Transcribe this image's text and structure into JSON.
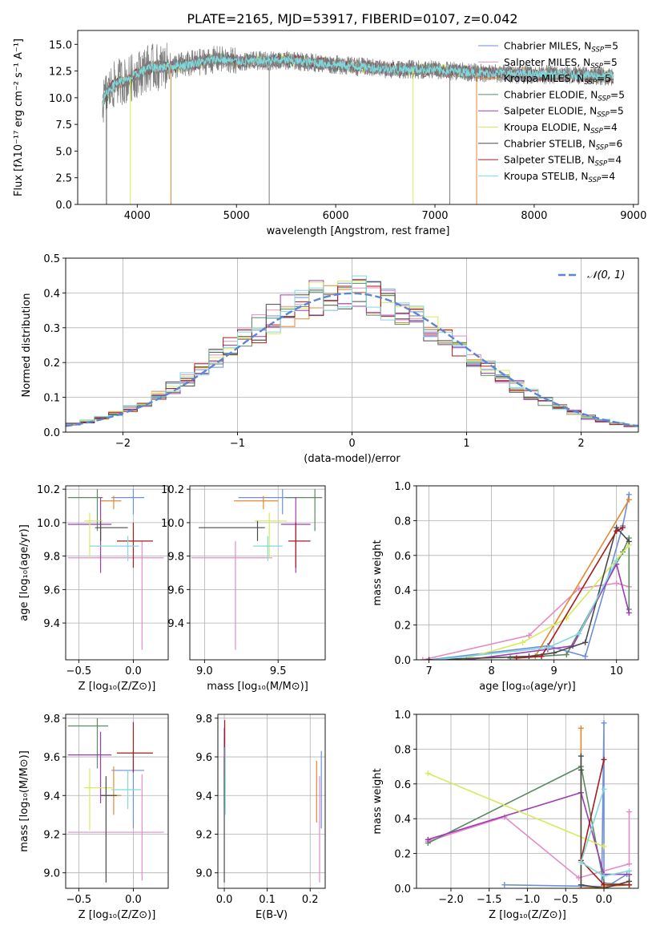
{
  "figure": {
    "title": "PLATE=2165, MJD=53917, FIBERID=0107, z=0.042"
  },
  "legend": [
    {
      "label": "Chabrier MILES, N",
      "sub": "SSP",
      "suffix": "=5",
      "color": "#6d8fdc"
    },
    {
      "label": "Salpeter MILES, N",
      "sub": "SSP",
      "suffix": "=5",
      "color": "#e48bc6"
    },
    {
      "label": "Kroupa MILES, N",
      "sub": "SSP",
      "suffix": "=5",
      "color": "#e3882f"
    },
    {
      "label": "Chabrier ELODIE, N",
      "sub": "SSP",
      "suffix": "=5",
      "color": "#5b8a63"
    },
    {
      "label": "Salpeter ELODIE, N",
      "sub": "SSP",
      "suffix": "=5",
      "color": "#9d3cb5"
    },
    {
      "label": "Kroupa ELODIE, N",
      "sub": "SSP",
      "suffix": "=4",
      "color": "#d6ea5b"
    },
    {
      "label": "Chabrier STELIB, N",
      "sub": "SSP",
      "suffix": "=6",
      "color": "#4a4a4a"
    },
    {
      "label": "Salpeter STELIB, N",
      "sub": "SSP",
      "suffix": "=4",
      "color": "#a51d1d"
    },
    {
      "label": "Kroupa STELIB, N",
      "sub": "SSP",
      "suffix": "=4",
      "color": "#7fd9dc"
    }
  ],
  "chart_data": [
    {
      "id": "spectrum",
      "type": "line",
      "xlabel": "wavelength [Angstrom, rest frame]",
      "ylabel": "Flux [fλ10⁻¹⁷ erg cm⁻² s⁻¹ A⁻¹]",
      "xlim": [
        3400,
        9050
      ],
      "ylim": [
        0,
        16.3
      ],
      "xticks": [
        4000,
        5000,
        6000,
        7000,
        8000,
        9000
      ],
      "yticks": [
        0.0,
        2.5,
        5.0,
        7.5,
        10.0,
        12.5,
        15.0
      ],
      "continuum": {
        "x": [
          3650,
          3700,
          3800,
          3900,
          4000,
          4100,
          4300,
          4500,
          4800,
          5000,
          5500,
          6000,
          6500,
          7000,
          7500,
          8000,
          8500,
          8800
        ],
        "y": [
          9.5,
          10.5,
          11.5,
          11.6,
          12.2,
          12.8,
          12.9,
          13.1,
          13.6,
          13.4,
          13.5,
          13.1,
          12.7,
          12.6,
          12.3,
          12.2,
          12.1,
          12.0
        ]
      },
      "spikes_down": [
        3690,
        3930,
        4340,
        5330,
        6780,
        7150,
        7420
      ]
    },
    {
      "id": "residuals",
      "type": "histogram",
      "xlabel": "(data-model)/error",
      "ylabel": "Normed distribution",
      "xlim": [
        -2.5,
        2.5
      ],
      "ylim": [
        0,
        0.5
      ],
      "xticks": [
        -2,
        -1,
        0,
        1,
        2
      ],
      "yticks": [
        0.0,
        0.1,
        0.2,
        0.3,
        0.4,
        0.5
      ],
      "curve_label": "𝒩(0, 1)",
      "curve_color": "#5b86d6",
      "grid": true,
      "legend_position": "top-right"
    },
    {
      "id": "age-vs-Z",
      "type": "errorbar",
      "xlabel": "Z [log₁₀(Z/Z⊙)]",
      "ylabel": "age  [log₁₀(age/yr)]",
      "xlim": [
        -0.62,
        0.32
      ],
      "ylim": [
        9.18,
        10.22
      ],
      "xticks": [
        -0.5,
        0.0
      ],
      "yticks": [
        9.4,
        9.6,
        9.8,
        10.0,
        10.2
      ],
      "points": [
        {
          "x": 0.0,
          "y": 10.15,
          "xerr": [
            0.2,
            0.1
          ],
          "yerr": [
            0.1,
            0.05
          ]
        },
        {
          "x": 0.08,
          "y": 9.79,
          "xerr": [
            0.68,
            0.2
          ],
          "yerr": [
            0.55,
            0.1
          ]
        },
        {
          "x": -0.18,
          "y": 10.13,
          "xerr": [
            0.12,
            0.07
          ],
          "yerr": [
            0.05,
            0.03
          ]
        },
        {
          "x": -0.33,
          "y": 10.15,
          "xerr": [
            0.27,
            0.05
          ],
          "yerr": [
            0.2,
            0.05
          ]
        },
        {
          "x": -0.3,
          "y": 9.99,
          "xerr": [
            0.3,
            0.1
          ],
          "yerr": [
            0.29,
            0.16
          ]
        },
        {
          "x": -0.4,
          "y": 10.01,
          "xerr": [
            0.05,
            0.12
          ],
          "yerr": [
            0.22,
            0.05
          ]
        },
        {
          "x": -0.3,
          "y": 9.97,
          "xerr": [
            0.05,
            0.25
          ],
          "yerr": [
            0.08,
            0.04
          ]
        },
        {
          "x": 0.0,
          "y": 9.89,
          "xerr": [
            0.15,
            0.18
          ],
          "yerr": [
            0.16,
            0.11
          ]
        },
        {
          "x": -0.05,
          "y": 9.86,
          "xerr": [
            0.35,
            0.1
          ],
          "yerr": [
            0.09,
            0.06
          ]
        }
      ]
    },
    {
      "id": "age-vs-mass",
      "type": "errorbar",
      "xlabel": "mass [log₁₀(M/M⊙)]",
      "ylabel": "",
      "xlim": [
        8.9,
        9.82
      ],
      "ylim": [
        9.18,
        10.22
      ],
      "xticks": [
        9.0,
        9.5
      ],
      "yticks": [
        9.4,
        9.6,
        9.8,
        10.0,
        10.2
      ],
      "points": [
        {
          "x": 9.53,
          "y": 10.15,
          "xerr": [
            0.3,
            0.1
          ],
          "yerr": [
            0.1,
            0.05
          ]
        },
        {
          "x": 9.21,
          "y": 9.79,
          "xerr": [
            0.3,
            0.25
          ],
          "yerr": [
            0.55,
            0.1
          ]
        },
        {
          "x": 9.4,
          "y": 10.13,
          "xerr": [
            0.2,
            0.1
          ],
          "yerr": [
            0.05,
            0.03
          ]
        },
        {
          "x": 9.75,
          "y": 10.15,
          "xerr": [
            0.2,
            0.05
          ],
          "yerr": [
            0.2,
            0.05
          ]
        },
        {
          "x": 9.62,
          "y": 9.99,
          "xerr": [
            0.1,
            0.1
          ],
          "yerr": [
            0.29,
            0.16
          ]
        },
        {
          "x": 9.44,
          "y": 10.01,
          "xerr": [
            0.1,
            0.12
          ],
          "yerr": [
            0.22,
            0.05
          ]
        },
        {
          "x": 9.36,
          "y": 9.97,
          "xerr": [
            0.4,
            0.05
          ],
          "yerr": [
            0.08,
            0.04
          ]
        },
        {
          "x": 9.62,
          "y": 9.89,
          "xerr": [
            0.05,
            0.1
          ],
          "yerr": [
            0.16,
            0.11
          ]
        },
        {
          "x": 9.43,
          "y": 9.86,
          "xerr": [
            0.1,
            0.1
          ],
          "yerr": [
            0.09,
            0.06
          ]
        }
      ]
    },
    {
      "id": "weight-vs-age",
      "type": "line",
      "xlabel": "age  [log₁₀(age/yr)]",
      "ylabel": "mass weight",
      "xlim": [
        6.8,
        10.35
      ],
      "ylim": [
        0,
        1.0
      ],
      "xticks": [
        7,
        8,
        9,
        10
      ],
      "yticks": [
        0.0,
        0.2,
        0.4,
        0.6,
        0.8,
        1.0
      ],
      "series": [
        {
          "x": [
            7.0,
            8.9,
            9.5,
            10.1,
            10.2
          ],
          "y": [
            0.0,
            0.08,
            0.02,
            0.77,
            0.95
          ]
        },
        {
          "x": [
            6.9,
            8.6,
            9.4,
            10.0,
            10.2
          ],
          "y": [
            0.0,
            0.14,
            0.41,
            0.44,
            0.42
          ]
        },
        {
          "x": [
            7.0,
            8.7,
            10.2
          ],
          "y": [
            0.0,
            0.02,
            0.92
          ]
        },
        {
          "x": [
            8.3,
            9.2,
            10.1,
            10.2,
            10.2
          ],
          "y": [
            0.01,
            0.03,
            0.62,
            0.7,
            0.29
          ]
        },
        {
          "x": [
            7.6,
            8.9,
            9.3,
            10.0,
            10.2
          ],
          "y": [
            0.0,
            0.06,
            0.08,
            0.55,
            0.27
          ]
        },
        {
          "x": [
            7.5,
            8.5,
            9.2,
            10.2
          ],
          "y": [
            0.0,
            0.1,
            0.24,
            0.66
          ]
        },
        {
          "x": [
            7.0,
            8.6,
            9.0,
            9.5,
            10.0,
            10.2
          ],
          "y": [
            0.0,
            0.02,
            0.04,
            0.1,
            0.76,
            0.68
          ]
        },
        {
          "x": [
            8.4,
            8.8,
            10.0,
            10.1
          ],
          "y": [
            0.01,
            0.02,
            0.74,
            0.76
          ]
        },
        {
          "x": [
            7.1,
            8.9,
            9.4,
            10.0
          ],
          "y": [
            0.0,
            0.07,
            0.15,
            0.57
          ]
        }
      ]
    },
    {
      "id": "mass-vs-Z",
      "type": "errorbar",
      "xlabel": "Z [log₁₀(Z/Z⊙)]",
      "ylabel": "mass [log₁₀(M/M⊙)]",
      "xlim": [
        -0.62,
        0.32
      ],
      "ylim": [
        8.92,
        9.82
      ],
      "xticks": [
        -0.5,
        0.0
      ],
      "yticks": [
        9.0,
        9.2,
        9.4,
        9.6,
        9.8
      ],
      "points": [
        {
          "x": 0.0,
          "y": 9.53,
          "xerr": [
            0.2,
            0.1
          ],
          "yerr": [
            0.3,
            0.1
          ]
        },
        {
          "x": 0.08,
          "y": 9.21,
          "xerr": [
            0.68,
            0.2
          ],
          "yerr": [
            0.25,
            0.3
          ]
        },
        {
          "x": -0.18,
          "y": 9.4,
          "xerr": [
            0.12,
            0.07
          ],
          "yerr": [
            0.1,
            0.15
          ]
        },
        {
          "x": -0.33,
          "y": 9.76,
          "xerr": [
            0.27,
            0.1
          ],
          "yerr": [
            0.22,
            0.04
          ]
        },
        {
          "x": -0.3,
          "y": 9.61,
          "xerr": [
            0.3,
            0.1
          ],
          "yerr": [
            0.25,
            0.12
          ]
        },
        {
          "x": -0.4,
          "y": 9.44,
          "xerr": [
            0.05,
            0.22
          ],
          "yerr": [
            0.22,
            0.1
          ]
        },
        {
          "x": -0.25,
          "y": 9.4,
          "xerr": [
            0.05,
            0.1
          ],
          "yerr": [
            0.45,
            0.1
          ]
        },
        {
          "x": 0.0,
          "y": 9.62,
          "xerr": [
            0.15,
            0.18
          ],
          "yerr": [
            0.1,
            0.16
          ]
        },
        {
          "x": -0.05,
          "y": 9.43,
          "xerr": [
            0.15,
            0.12
          ],
          "yerr": [
            0.1,
            0.1
          ]
        }
      ]
    },
    {
      "id": "mass-vs-ebv",
      "type": "errorbar",
      "xlabel": "E(B-V)",
      "ylabel": "",
      "xlim": [
        -0.015,
        0.235
      ],
      "ylim": [
        8.92,
        9.82
      ],
      "xticks": [
        0.0,
        0.1,
        0.2
      ],
      "yticks": [
        9.0,
        9.2,
        9.4,
        9.6,
        9.8
      ],
      "points": [
        {
          "x": 0.226,
          "y": 9.43,
          "xerr": [
            0,
            0
          ],
          "yerr": [
            0.2,
            0.2
          ]
        },
        {
          "x": 0.222,
          "y": 9.2,
          "xerr": [
            0,
            0
          ],
          "yerr": [
            0.25,
            0.3
          ]
        },
        {
          "x": 0.215,
          "y": 9.41,
          "xerr": [
            0,
            0
          ],
          "yerr": [
            0.15,
            0.17
          ]
        },
        {
          "x": 0.0,
          "y": 9.6,
          "xerr": [
            0,
            0
          ],
          "yerr": [
            0.2,
            0.1
          ]
        },
        {
          "x": 0.0,
          "y": 9.55,
          "xerr": [
            0,
            0
          ],
          "yerr": [
            0.2,
            0.2
          ]
        },
        {
          "x": 0.0,
          "y": 9.42,
          "xerr": [
            0,
            0
          ],
          "yerr": [
            0.1,
            0.1
          ]
        },
        {
          "x": 0.0,
          "y": 9.3,
          "xerr": [
            0,
            0
          ],
          "yerr": [
            0.35,
            0.3
          ]
        },
        {
          "x": 0.001,
          "y": 9.6,
          "xerr": [
            0,
            0
          ],
          "yerr": [
            0.1,
            0.19
          ]
        },
        {
          "x": 0.002,
          "y": 9.45,
          "xerr": [
            0,
            0
          ],
          "yerr": [
            0.15,
            0.2
          ]
        }
      ]
    },
    {
      "id": "weight-vs-Z",
      "type": "line",
      "xlabel": "Z [log₁₀(Z/Z⊙)]",
      "ylabel": "mass weight",
      "xlim": [
        -2.45,
        0.45
      ],
      "ylim": [
        0,
        1.0
      ],
      "xticks": [
        -2.0,
        -1.5,
        -1.0,
        -0.5,
        0.0
      ],
      "yticks": [
        0.0,
        0.2,
        0.4,
        0.6,
        0.8,
        1.0
      ],
      "series": [
        {
          "x": [
            -1.3,
            -0.03,
            0.0,
            0.0,
            0.3
          ],
          "y": [
            0.02,
            0.01,
            0.95,
            0.0,
            0.08
          ]
        },
        {
          "x": [
            -2.3,
            -1.3,
            -0.33,
            0.33,
            0.33
          ],
          "y": [
            0.27,
            0.41,
            0.06,
            0.14,
            0.44
          ]
        },
        {
          "x": [
            -0.3,
            -0.3,
            0.33
          ],
          "y": [
            0.92,
            0.0,
            0.02
          ]
        },
        {
          "x": [
            -2.3,
            -0.3,
            0.0,
            0.33,
            0.33
          ],
          "y": [
            0.26,
            0.7,
            0.03,
            0.02,
            0.08
          ]
        },
        {
          "x": [
            -2.3,
            -0.3,
            0.0,
            0.33
          ],
          "y": [
            0.28,
            0.55,
            0.08,
            0.08
          ]
        },
        {
          "x": [
            -2.3,
            0.0
          ],
          "y": [
            0.66,
            0.24
          ]
        },
        {
          "x": [
            -0.3,
            -0.3,
            -0.3,
            0.0,
            0.33
          ],
          "y": [
            0.76,
            0.68,
            0.02,
            0.0,
            0.04
          ]
        },
        {
          "x": [
            0.0,
            -0.3,
            0.0,
            0.33
          ],
          "y": [
            0.74,
            0.16,
            0.02,
            0.02
          ]
        },
        {
          "x": [
            0.0,
            -0.3,
            0.0,
            0.33
          ],
          "y": [
            0.57,
            0.15,
            0.07,
            0.1
          ]
        }
      ]
    }
  ]
}
